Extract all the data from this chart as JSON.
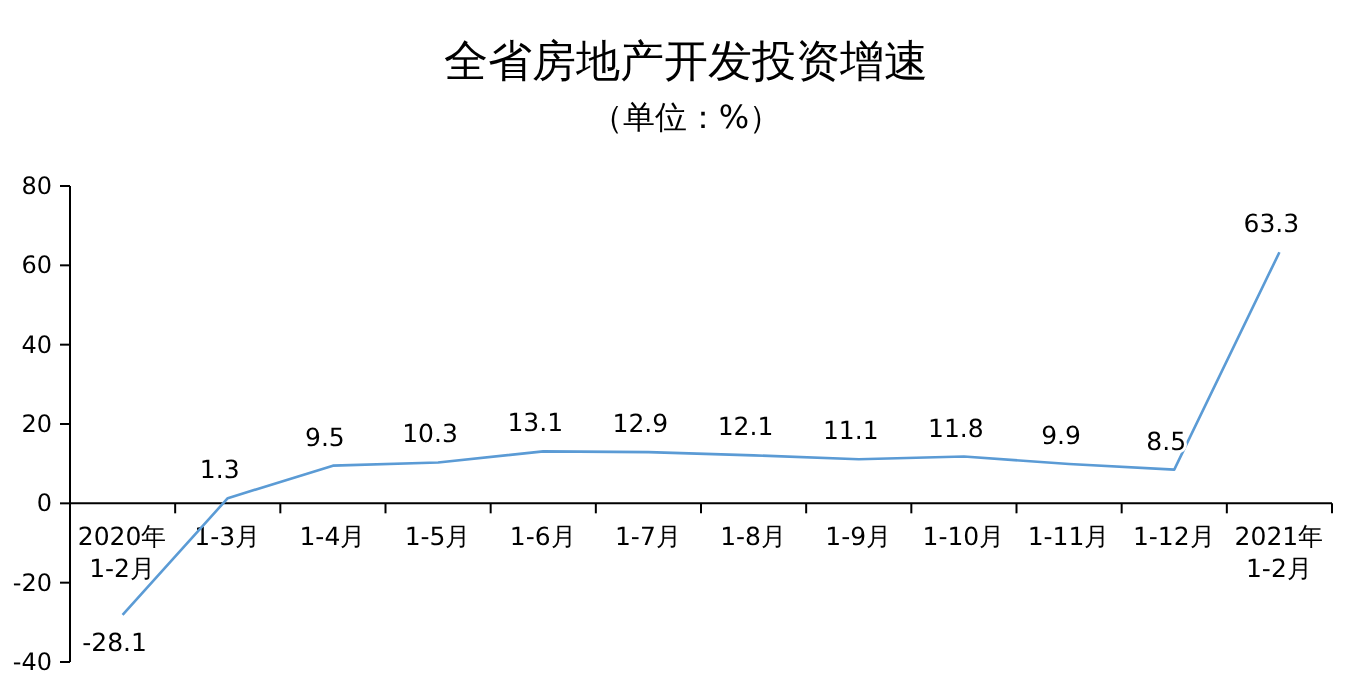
{
  "chart_data": {
    "type": "line",
    "title": "全省房地产开发投资增速",
    "subtitle": "（单位：%）",
    "categories": [
      "2020年\n1-2月",
      "1-3月",
      "1-4月",
      "1-5月",
      "1-6月",
      "1-7月",
      "1-8月",
      "1-9月",
      "1-10月",
      "1-11月",
      "1-12月",
      "2021年\n1-2月"
    ],
    "series": [
      {
        "color": "#5b9bd5",
        "values": [
          -28.1,
          1.3,
          9.5,
          10.3,
          13.1,
          12.9,
          12.1,
          11.1,
          11.8,
          9.9,
          8.5,
          63.3
        ]
      }
    ],
    "ylim": [
      -40,
      80
    ],
    "yticks": [
      -40,
      -20,
      0,
      20,
      40,
      60,
      80
    ],
    "data_labels": true,
    "grid": false,
    "marker": "none",
    "line_style": "solid"
  }
}
